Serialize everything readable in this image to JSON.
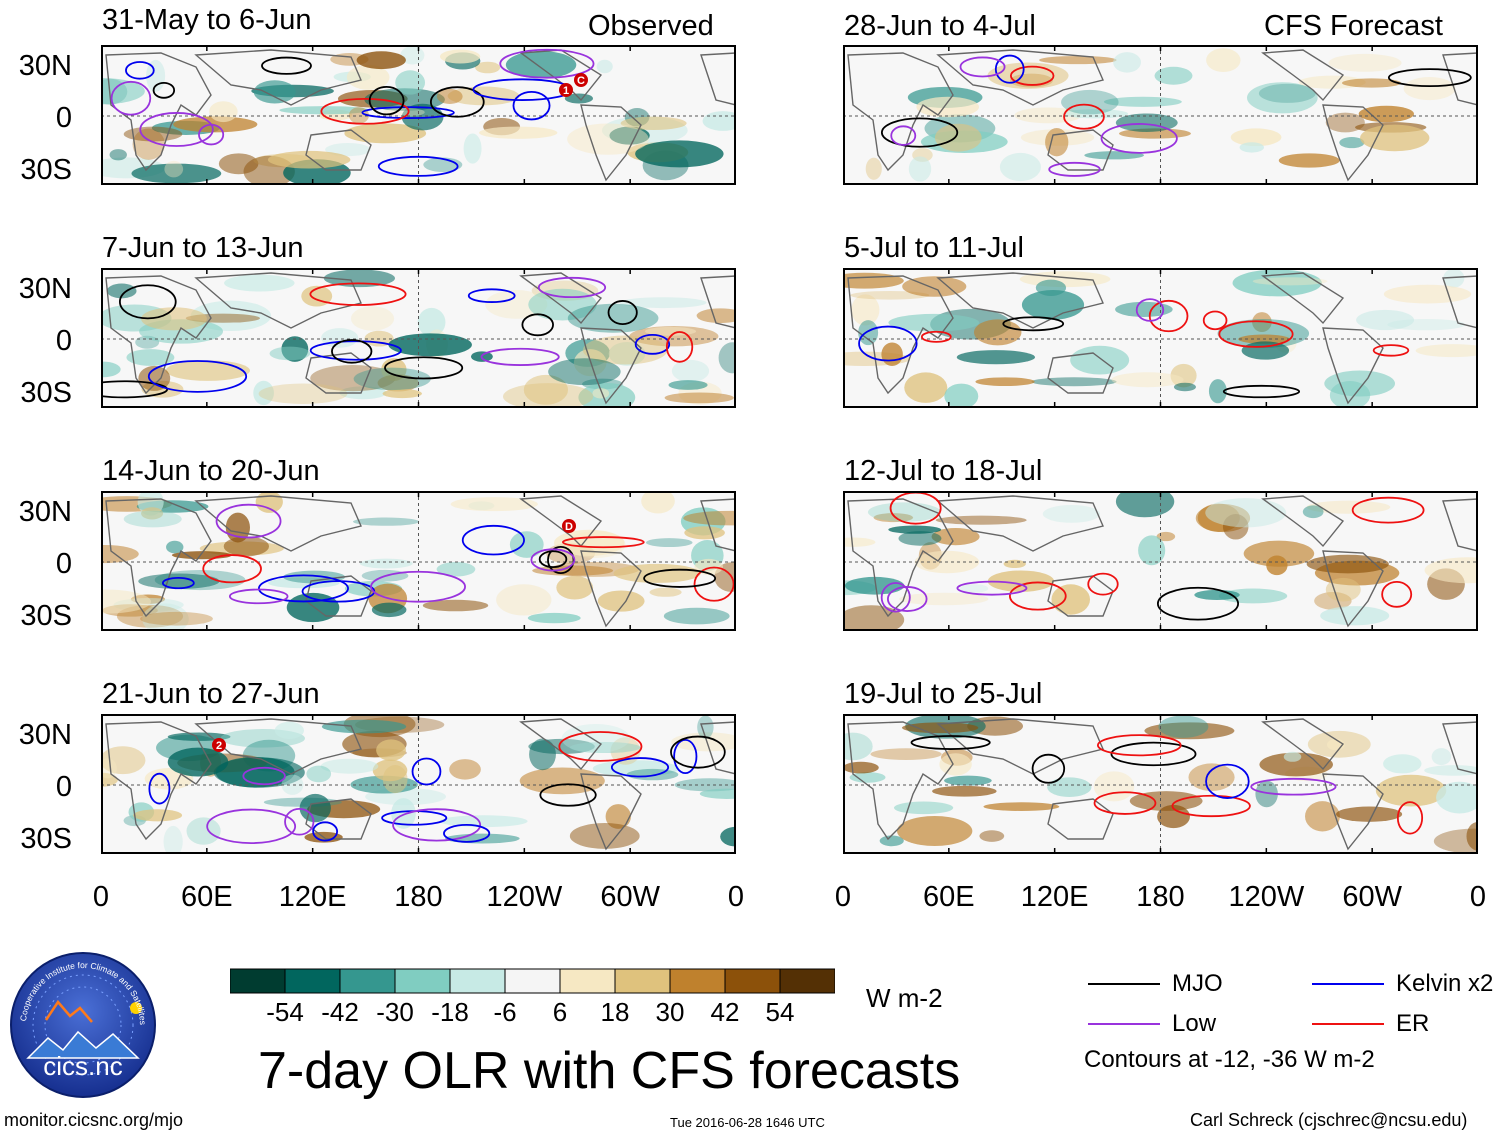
{
  "figure": {
    "title": "7-day OLR with CFS forecasts",
    "left_column_label": "Observed",
    "right_column_label": "CFS Forecast",
    "url": "monitor.cicsnc.org/mjo",
    "timestamp": "Tue 2016-06-28 1646 UTC",
    "author": "Carl Schreck (cjschrec@ncsu.edu)"
  },
  "panels": {
    "observed": [
      {
        "title": "31-May to 6-Jun"
      },
      {
        "title": "7-Jun to 13-Jun"
      },
      {
        "title": "14-Jun to 20-Jun"
      },
      {
        "title": "21-Jun to 27-Jun"
      }
    ],
    "forecast": [
      {
        "title": "28-Jun to 4-Jul"
      },
      {
        "title": "5-Jul to 11-Jul"
      },
      {
        "title": "12-Jul to 18-Jul"
      },
      {
        "title": "19-Jul to 25-Jul"
      }
    ]
  },
  "axes": {
    "y_ticks": [
      "30N",
      "0",
      "30S"
    ],
    "x_ticks": [
      "0",
      "60E",
      "120E",
      "180",
      "120W",
      "60W",
      "0"
    ]
  },
  "colorbar": {
    "labels": [
      "-54",
      "-42",
      "-30",
      "-18",
      "-6",
      "6",
      "18",
      "30",
      "42",
      "54"
    ],
    "units": "W m-2",
    "colors": [
      "#003c30",
      "#01665e",
      "#35978f",
      "#80cdc1",
      "#c7eae5",
      "#f5f5f5",
      "#f6e8c3",
      "#dfc27d",
      "#bf812d",
      "#8c510a",
      "#543005"
    ]
  },
  "legend": {
    "items": [
      {
        "label": "MJO",
        "color": "#000000"
      },
      {
        "label": "Kelvin x2",
        "color": "#0000ee"
      },
      {
        "label": "Low",
        "color": "#9933dd"
      },
      {
        "label": "ER",
        "color": "#ee1111"
      }
    ],
    "note": "Contours at -12, -36 W m-2"
  },
  "logo": {
    "text": "cics.nc",
    "ring_text": "Cooperative Institute for Climate and Satellites"
  },
  "storm_markers": [
    "1",
    "C",
    "D",
    "2"
  ]
}
